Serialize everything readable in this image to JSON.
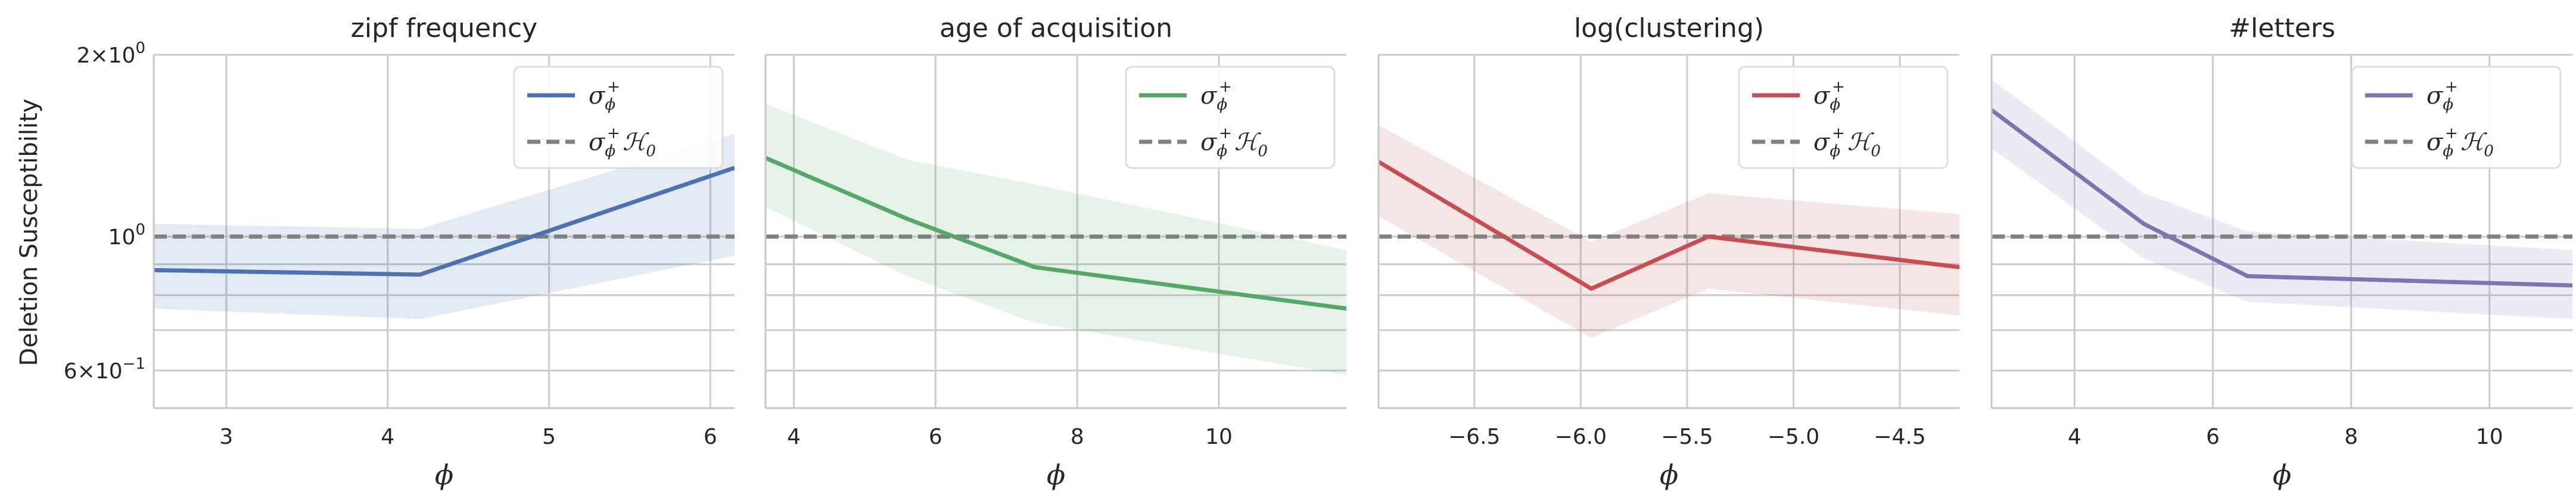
{
  "figure": {
    "ylabel": "Deletion Susceptibility",
    "xlabel": "ϕ",
    "yscale": "log",
    "ylim": [
      0.52,
      2.0
    ],
    "yticks": [
      {
        "value": 2.0,
        "base": "2×10",
        "exp": "0"
      },
      {
        "value": 1.0,
        "base": "10",
        "exp": "0"
      },
      {
        "value": 0.6,
        "base": "6×10",
        "exp": "−1"
      }
    ],
    "minor_gridlines": [
      0.9,
      0.8,
      0.7,
      0.6
    ],
    "reference_value": 1.0,
    "grid": true
  },
  "legend": {
    "series_label": {
      "main": "σ",
      "sub": "ϕ",
      "sup": "+"
    },
    "reference_label": {
      "main": "σ",
      "sub": "ϕ",
      "sup": "+",
      "tail": "ℋ",
      "tail_sub": "0"
    },
    "reference_color": "#808080",
    "placement": "top-right"
  },
  "chart_data": [
    {
      "type": "line",
      "title": "zipf frequency",
      "color": "#4c72b0",
      "xlim": [
        2.55,
        6.15
      ],
      "xticks": [
        {
          "value": 3,
          "label": "3"
        },
        {
          "value": 4,
          "label": "4"
        },
        {
          "value": 5,
          "label": "5"
        },
        {
          "value": 6,
          "label": "6"
        }
      ],
      "series": [
        {
          "x": [
            2.55,
            4.2,
            6.15
          ],
          "y": [
            0.88,
            0.865,
            1.3
          ],
          "ci_low": [
            0.76,
            0.73,
            0.93
          ],
          "ci_high": [
            1.05,
            1.03,
            1.48
          ]
        }
      ]
    },
    {
      "type": "line",
      "title": "age of acquisition",
      "color": "#55a868",
      "xlim": [
        3.6,
        11.8
      ],
      "xticks": [
        {
          "value": 4,
          "label": "4"
        },
        {
          "value": 6,
          "label": "6"
        },
        {
          "value": 8,
          "label": "8"
        },
        {
          "value": 10,
          "label": "10"
        }
      ],
      "series": [
        {
          "x": [
            3.6,
            5.6,
            7.4,
            11.8
          ],
          "y": [
            1.35,
            1.07,
            0.89,
            0.76
          ],
          "ci_low": [
            1.12,
            0.86,
            0.72,
            0.59
          ],
          "ci_high": [
            1.66,
            1.34,
            1.22,
            0.95
          ]
        }
      ]
    },
    {
      "type": "line",
      "title": "log(clustering)",
      "color": "#c44e52",
      "xlim": [
        -6.95,
        -4.22
      ],
      "xticks": [
        {
          "value": -6.5,
          "label": "−6.5"
        },
        {
          "value": -6.0,
          "label": "−6.0"
        },
        {
          "value": -5.5,
          "label": "−5.5"
        },
        {
          "value": -5.0,
          "label": "−5.0"
        },
        {
          "value": -4.5,
          "label": "−4.5"
        }
      ],
      "series": [
        {
          "x": [
            -6.95,
            -5.95,
            -5.4,
            -4.22
          ],
          "y": [
            1.33,
            0.82,
            1.0,
            0.89
          ],
          "ci_low": [
            1.08,
            0.68,
            0.82,
            0.74
          ],
          "ci_high": [
            1.53,
            0.98,
            1.18,
            1.09
          ]
        }
      ]
    },
    {
      "type": "line",
      "title": "#letters",
      "color": "#8172b2",
      "xlim": [
        2.8,
        11.2
      ],
      "xticks": [
        {
          "value": 4,
          "label": "4"
        },
        {
          "value": 6,
          "label": "6"
        },
        {
          "value": 8,
          "label": "8"
        },
        {
          "value": 10,
          "label": "10"
        }
      ],
      "series": [
        {
          "x": [
            2.8,
            5.0,
            6.5,
            11.2
          ],
          "y": [
            1.62,
            1.05,
            0.86,
            0.83
          ],
          "ci_low": [
            1.4,
            0.92,
            0.78,
            0.73
          ],
          "ci_high": [
            1.82,
            1.18,
            1.02,
            0.95
          ]
        }
      ]
    }
  ]
}
